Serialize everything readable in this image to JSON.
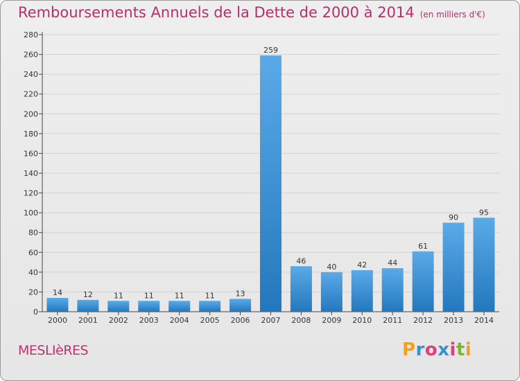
{
  "header": {
    "title": "Remboursements Annuels de la Dette de 2000 à 2014",
    "unit": "(en milliers d'€)"
  },
  "footer": {
    "commune": "MESLIèRES",
    "logo_text": "Proxiti"
  },
  "colors": {
    "title": "#b3306a",
    "bar_light": "#5aaae8",
    "bar_dark": "#2378bd",
    "logo_letters": [
      "#f0a020",
      "#3a8fd0",
      "#e0407a",
      "#3a8fd0",
      "#e0407a",
      "#7ab830",
      "#f0a020"
    ]
  },
  "chart_data": {
    "type": "bar",
    "categories": [
      "2000",
      "2001",
      "2002",
      "2003",
      "2004",
      "2005",
      "2006",
      "2007",
      "2008",
      "2009",
      "2010",
      "2011",
      "2012",
      "2013",
      "2014"
    ],
    "values": [
      14,
      12,
      11,
      11,
      11,
      11,
      13,
      259,
      46,
      40,
      42,
      44,
      61,
      90,
      95
    ],
    "title": "Remboursements Annuels de la Dette de 2000 à 2014",
    "ylim": [
      0,
      280
    ],
    "yticks": [
      0,
      20,
      40,
      60,
      80,
      100,
      120,
      140,
      160,
      180,
      200,
      220,
      240,
      260,
      280
    ],
    "grid": true,
    "data_labels": true
  }
}
